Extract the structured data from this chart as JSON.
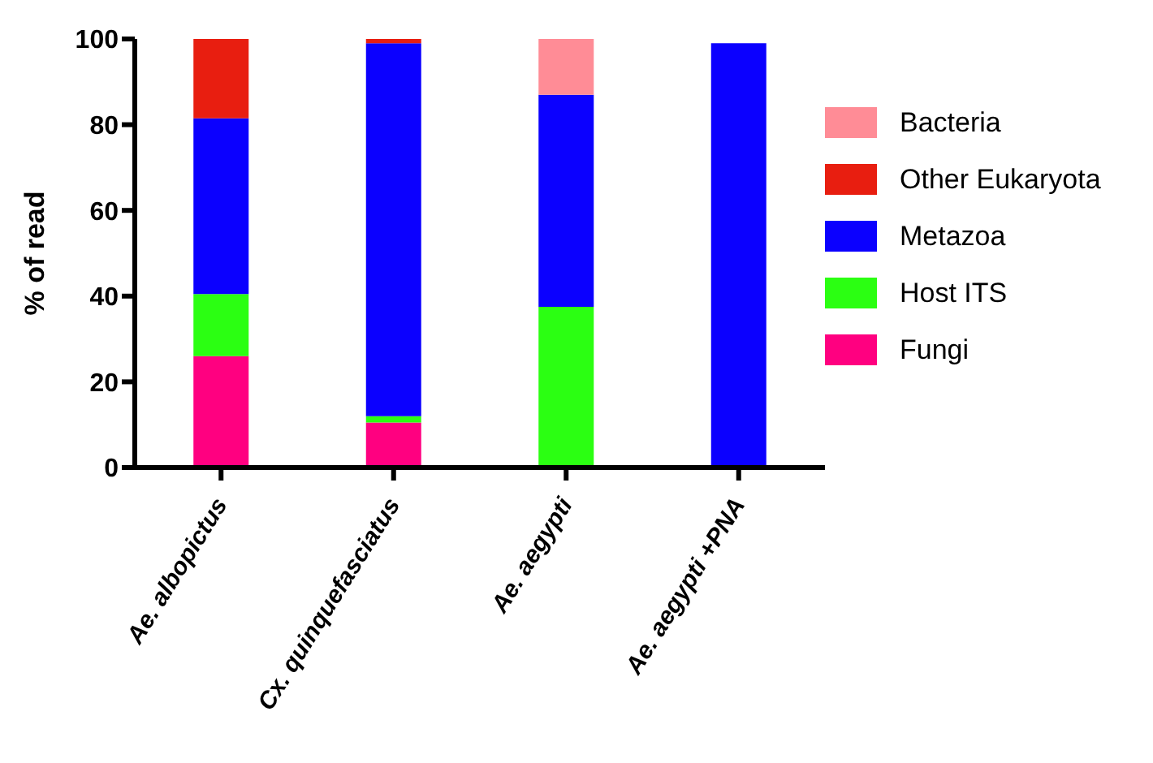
{
  "chart_data": {
    "type": "bar",
    "stacked": true,
    "ylabel": "% of read",
    "categories": [
      "Ae. albopictus",
      "Cx. quinquefasciatus",
      "Ae. aegypti",
      "Ae. aegypti +PNA"
    ],
    "series": [
      {
        "name": "Fungi",
        "color": "#ff0080",
        "values": [
          26,
          10.5,
          0,
          0
        ]
      },
      {
        "name": "Host ITS",
        "color": "#2bff12",
        "values": [
          14.5,
          1.5,
          37.5,
          0
        ]
      },
      {
        "name": "Metazoa",
        "color": "#0b00ff",
        "values": [
          41,
          87,
          49.5,
          99
        ]
      },
      {
        "name": "Other Eukaryota",
        "color": "#e81e10",
        "values": [
          18.5,
          1,
          0,
          0
        ]
      },
      {
        "name": "Bacteria",
        "color": "#ff8c96",
        "values": [
          0,
          0,
          13,
          0
        ]
      }
    ],
    "ylim": [
      0,
      100
    ],
    "yticks": [
      0,
      20,
      40,
      60,
      80,
      100
    ],
    "grid": false,
    "legend": "right"
  }
}
